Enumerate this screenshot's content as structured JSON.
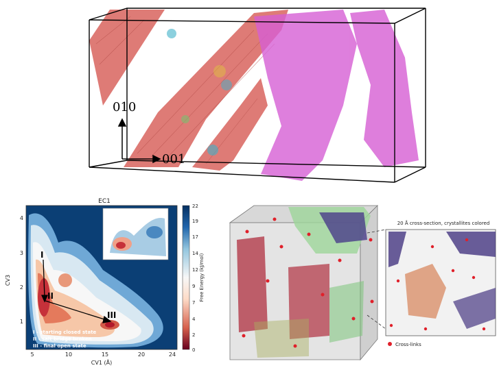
{
  "top_panel": {
    "axis_label_010": "010",
    "axis_label_001": "001",
    "colors": {
      "lattice": "#d9645f",
      "amorphous": "#d65fd4",
      "box": "#000000"
    }
  },
  "energy_panel": {
    "title": "EC1",
    "xlabel": "CV1 (Å)",
    "ylabel": "CV3",
    "x_ticks": [
      "5",
      "10",
      "15",
      "20",
      "24"
    ],
    "y_ticks": [
      "1",
      "2",
      "3",
      "4"
    ],
    "colorbar_label": "Free Energy (kJ/mol)",
    "colorbar_ticks": [
      "0",
      "2",
      "4",
      "7",
      "9",
      "12",
      "14",
      "17",
      "19",
      "22"
    ],
    "state_markers": [
      "I",
      "II",
      "III"
    ],
    "legend_lines": [
      "I  -  starting closed state",
      "II  -  salt bridge broken",
      "III  -  final open state"
    ],
    "colors": {
      "background": "#0b3f75",
      "low": "#b2182b",
      "mid": "#f7f7f7",
      "high": "#2166ac"
    }
  },
  "cube_panel": {
    "zoom_title": "20 Å cross-section, crystallites colored",
    "legend_label": "Cross-links",
    "colors": {
      "crosslink": "#e0202a",
      "crystal_red": "#b03040",
      "crystal_green": "#7cc47a",
      "crystal_purple": "#3a2a7a",
      "crystal_orange": "#d9906a"
    }
  }
}
